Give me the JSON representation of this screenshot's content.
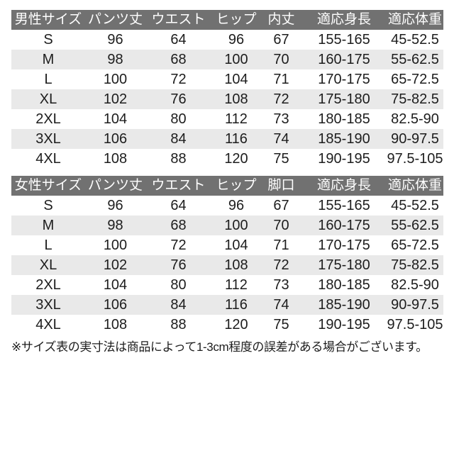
{
  "colors": {
    "header_bg": "#717171",
    "header_text": "#ffffff",
    "stripe_bg": "#e9e9e9",
    "body_text": "#1d1d1d",
    "page_bg": "#ffffff"
  },
  "note": "※サイズ表の実寸法は商品によって1-3cm程度の誤差がある場合がございます。",
  "chart_data": [
    {
      "type": "table",
      "title": "男性サイズ",
      "columns": [
        "男性サイズ",
        "パンツ丈",
        "ウエスト",
        "ヒップ",
        "内丈",
        "適応身長",
        "適応体重"
      ],
      "rows": [
        [
          "S",
          "96",
          "64",
          "96",
          "67",
          "155-165",
          "45-52.5"
        ],
        [
          "M",
          "98",
          "68",
          "100",
          "70",
          "160-175",
          "55-62.5"
        ],
        [
          "L",
          "100",
          "72",
          "104",
          "71",
          "170-175",
          "65-72.5"
        ],
        [
          "XL",
          "102",
          "76",
          "108",
          "72",
          "175-180",
          "75-82.5"
        ],
        [
          "2XL",
          "104",
          "80",
          "112",
          "73",
          "180-185",
          "82.5-90"
        ],
        [
          "3XL",
          "106",
          "84",
          "116",
          "74",
          "185-190",
          "90-97.5"
        ],
        [
          "4XL",
          "108",
          "88",
          "120",
          "75",
          "190-195",
          "97.5-105"
        ]
      ],
      "layout": {
        "header_style": "dark-gray band, white text",
        "row_striping": "even rows light gray",
        "alignment": "center"
      }
    },
    {
      "type": "table",
      "title": "女性サイズ",
      "columns": [
        "女性サイズ",
        "パンツ丈",
        "ウエスト",
        "ヒップ",
        "脚口",
        "適応身長",
        "適応体重"
      ],
      "rows": [
        [
          "S",
          "96",
          "64",
          "96",
          "67",
          "155-165",
          "45-52.5"
        ],
        [
          "M",
          "98",
          "68",
          "100",
          "70",
          "160-175",
          "55-62.5"
        ],
        [
          "L",
          "100",
          "72",
          "104",
          "71",
          "170-175",
          "65-72.5"
        ],
        [
          "XL",
          "102",
          "76",
          "108",
          "72",
          "175-180",
          "75-82.5"
        ],
        [
          "2XL",
          "104",
          "80",
          "112",
          "73",
          "180-185",
          "82.5-90"
        ],
        [
          "3XL",
          "106",
          "84",
          "116",
          "74",
          "185-190",
          "90-97.5"
        ],
        [
          "4XL",
          "108",
          "88",
          "120",
          "75",
          "190-195",
          "97.5-105"
        ]
      ],
      "layout": {
        "header_style": "dark-gray band, white text",
        "row_striping": "even rows light gray",
        "alignment": "center"
      }
    }
  ]
}
